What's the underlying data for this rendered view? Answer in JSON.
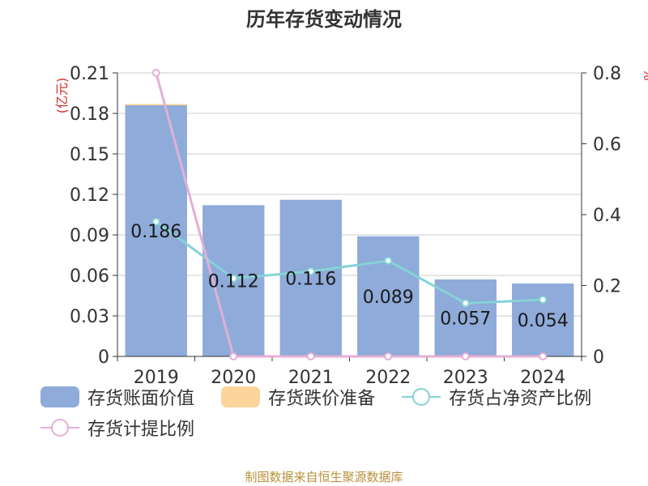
{
  "title": "历年存货变动情况",
  "colors": {
    "book_value": "#8eabd9",
    "impairment": "#fcd59c",
    "net_asset_ratio": "#85d3d6",
    "provision_ratio": "#e3afd6",
    "unit": "#d62a2a",
    "source": "#b8913a"
  },
  "chart_data": {
    "type": "bar",
    "categories": [
      "2019",
      "2020",
      "2021",
      "2022",
      "2023",
      "2024"
    ],
    "y_left": {
      "unit": "亿元",
      "min": 0,
      "max": 0.21,
      "ticks": [
        "0",
        "0.03",
        "0.06",
        "0.09",
        "0.12",
        "0.15",
        "0.18",
        "0.21"
      ]
    },
    "y_right": {
      "unit": "%",
      "min": 0,
      "max": 0.8,
      "ticks": [
        "0",
        "0.2",
        "0.4",
        "0.6",
        "0.8"
      ]
    },
    "series": [
      {
        "name": "存货账面价值",
        "kind": "bar",
        "axis": "left",
        "values": [
          0.186,
          0.112,
          0.116,
          0.089,
          0.057,
          0.054
        ],
        "labels": [
          "0.186",
          "0.112",
          "0.116",
          "0.089",
          "0.057",
          "0.054"
        ]
      },
      {
        "name": "存货跌价准备",
        "kind": "bar-stack",
        "axis": "left",
        "values": [
          0.001,
          0,
          0,
          0,
          0,
          0
        ]
      },
      {
        "name": "存货占净资产比例",
        "kind": "line",
        "axis": "right",
        "values": [
          0.38,
          0.22,
          0.24,
          0.27,
          0.15,
          0.16
        ]
      },
      {
        "name": "存货计提比例",
        "kind": "line",
        "axis": "right",
        "values": [
          0.8,
          0,
          0,
          0,
          0,
          0
        ]
      }
    ],
    "grid": true,
    "legend_position": "bottom"
  },
  "source": "制图数据来自恒生聚源数据库"
}
